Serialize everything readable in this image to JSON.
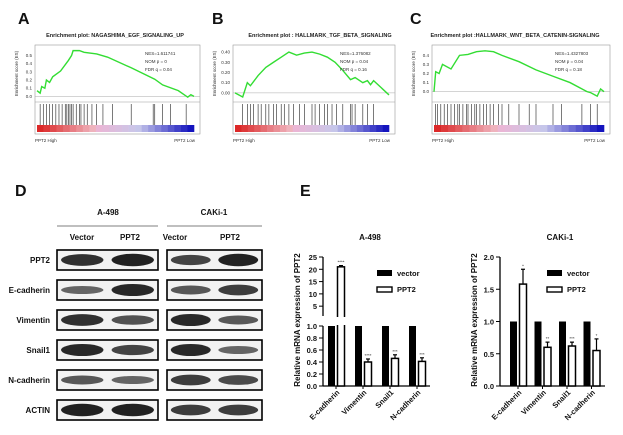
{
  "panels": {
    "a": "A",
    "b": "B",
    "c": "C",
    "d": "D",
    "e": "E"
  },
  "gsea_common": {
    "ylabel": "Enrichment score (ES)",
    "left_label": "PPT2 High",
    "right_label": "PPT2 Low",
    "line_color": "#33dd33"
  },
  "chart_data": [
    {
      "type": "line",
      "title": "Enrichment plot: NAGASHIMA_EGF_SIGNALING_UP",
      "ylim": [
        -0.02,
        0.58
      ],
      "yticks": [
        "0.0",
        "0.1",
        "0.2",
        "0.3",
        "0.4",
        "0.5"
      ],
      "ytick_values": [
        0,
        0.1,
        0.2,
        0.3,
        0.4,
        0.5
      ],
      "stats": [
        "NES=1.611741",
        "NOM p = 0",
        "FDR q = 0.04"
      ],
      "x": [
        0,
        0.02,
        0.03,
        0.05,
        0.06,
        0.08,
        0.1,
        0.15,
        0.2,
        0.22,
        0.23,
        0.27,
        0.3,
        0.38,
        0.45,
        0.6,
        0.75,
        0.8,
        0.9,
        0.96,
        0.98,
        1
      ],
      "y": [
        0.07,
        0.04,
        0.12,
        0.1,
        0.2,
        0.17,
        0.24,
        0.31,
        0.44,
        0.5,
        0.56,
        0.56,
        0.54,
        0.52,
        0.48,
        0.35,
        0.21,
        0.14,
        0.07,
        -0.01,
        0.02,
        0.0
      ],
      "hits": [
        0.02,
        0.04,
        0.06,
        0.08,
        0.1,
        0.12,
        0.14,
        0.16,
        0.18,
        0.19,
        0.2,
        0.21,
        0.22,
        0.23,
        0.25,
        0.27,
        0.28,
        0.3,
        0.32,
        0.35,
        0.38,
        0.42,
        0.48,
        0.6,
        0.74,
        0.75,
        0.8,
        0.85,
        0.95
      ]
    },
    {
      "type": "line",
      "title": "Enrichment plot : HALLMARK_TGF_BETA_SIGNALING",
      "ylim": [
        -0.05,
        0.43
      ],
      "yticks": [
        "0.00",
        "0.10",
        "0.20",
        "0.30",
        "0.40"
      ],
      "ytick_values": [
        0,
        0.1,
        0.2,
        0.3,
        0.4
      ],
      "stats": [
        "NES=1.376082",
        "NOM p = 0.04",
        "FDR q = 0.16"
      ],
      "x": [
        0,
        0.05,
        0.08,
        0.1,
        0.15,
        0.2,
        0.25,
        0.3,
        0.35,
        0.4,
        0.45,
        0.5,
        0.55,
        0.6,
        0.65,
        0.7,
        0.75,
        0.78,
        0.83,
        0.86,
        0.88,
        0.9,
        0.95,
        1
      ],
      "y": [
        0.0,
        -0.04,
        0.1,
        0.07,
        0.17,
        0.25,
        0.3,
        0.35,
        0.4,
        0.37,
        0.39,
        0.4,
        0.38,
        0.35,
        0.3,
        0.22,
        0.13,
        0.15,
        0.1,
        0.12,
        0.08,
        0.12,
        0.05,
        -0.02
      ],
      "hits": [
        0.05,
        0.08,
        0.1,
        0.12,
        0.15,
        0.17,
        0.2,
        0.22,
        0.25,
        0.27,
        0.3,
        0.32,
        0.35,
        0.38,
        0.42,
        0.45,
        0.5,
        0.52,
        0.55,
        0.58,
        0.6,
        0.63,
        0.66,
        0.7,
        0.75,
        0.76,
        0.78,
        0.83,
        0.86,
        0.9
      ]
    },
    {
      "type": "line",
      "title": "Enrichment plot :HALLMARK_WNT_BETA_CATENIN-SIGNALING",
      "ylim": [
        -0.07,
        0.47
      ],
      "yticks": [
        "0.0",
        "0.1",
        "0.2",
        "0.3",
        "0.4"
      ],
      "ytick_values": [
        0,
        0.1,
        0.2,
        0.3,
        0.4
      ],
      "stats": [
        "NES=1.4327803",
        "NOM p = 0.04",
        "FDR q = 0.18"
      ],
      "x": [
        0,
        0.01,
        0.03,
        0.05,
        0.1,
        0.15,
        0.2,
        0.25,
        0.3,
        0.35,
        0.4,
        0.5,
        0.6,
        0.7,
        0.8,
        0.9,
        0.92,
        0.95,
        0.96,
        0.98,
        1
      ],
      "y": [
        0,
        0.22,
        0.2,
        0.3,
        0.25,
        0.4,
        0.41,
        0.44,
        0.45,
        0.44,
        0.4,
        0.33,
        0.24,
        0.17,
        0.1,
        0.0,
        -0.01,
        -0.04,
        -0.05,
        0.03,
        0.0
      ],
      "hits": [
        0.01,
        0.02,
        0.04,
        0.06,
        0.08,
        0.1,
        0.12,
        0.14,
        0.15,
        0.17,
        0.19,
        0.2,
        0.22,
        0.24,
        0.25,
        0.27,
        0.29,
        0.31,
        0.33,
        0.35,
        0.38,
        0.4,
        0.44,
        0.5,
        0.56,
        0.6,
        0.7,
        0.75,
        0.87,
        0.92,
        0.96
      ]
    },
    {
      "type": "bar",
      "title": "A-498",
      "ylabel": "Relative mRNA expression of PPT2",
      "categories": [
        "E-cadherin",
        "Vimentin",
        "Snail1",
        "N-cadherin"
      ],
      "broken_axis": true,
      "yticks_lower": [
        "0.0",
        "0.2",
        "0.4",
        "0.6",
        "0.8",
        "1.0"
      ],
      "yticks_upper": [
        "5",
        "10",
        "15",
        "20",
        "25"
      ],
      "series": [
        {
          "name": "vector",
          "values": [
            1,
            1,
            1,
            1
          ],
          "errors": [
            0,
            0,
            0,
            0
          ],
          "color": "#000000"
        },
        {
          "name": "PPT2",
          "values": [
            21,
            0.4,
            0.46,
            0.41
          ],
          "errors": [
            0.5,
            0.05,
            0.06,
            0.06
          ],
          "color": "#ffffff"
        }
      ],
      "significance": [
        "****",
        "****",
        "***",
        "***"
      ]
    },
    {
      "type": "bar",
      "title": "CAKi-1",
      "ylabel": "Relative mRNA expression of PPT2",
      "categories": [
        "E-cadherin",
        "Vimentin",
        "Snail1",
        "N-cadherin"
      ],
      "ylim": [
        0,
        2.0
      ],
      "yticks": [
        "0.0",
        "0.5",
        "1.0",
        "1.5",
        "2.0"
      ],
      "series": [
        {
          "name": "vector",
          "values": [
            1,
            1,
            1,
            1
          ],
          "errors": [
            0,
            0,
            0,
            0
          ],
          "color": "#000000"
        },
        {
          "name": "PPT2",
          "values": [
            1.58,
            0.6,
            0.62,
            0.55
          ],
          "errors": [
            0.23,
            0.08,
            0.06,
            0.18
          ],
          "color": "#ffffff"
        }
      ],
      "significance": [
        "*",
        "**",
        "***",
        "*"
      ]
    }
  ],
  "western": {
    "cell_lines": [
      "A-498",
      "CAKi-1"
    ],
    "lanes": [
      "Vector",
      "PPT2",
      "Vector",
      "PPT2"
    ],
    "rows": [
      "PPT2",
      "E-cadherin",
      "Vimentin",
      "Snail1",
      "N-cadherin",
      "ACTIN"
    ],
    "intensity": [
      [
        0.85,
        0.95,
        0.7,
        0.95
      ],
      [
        0.45,
        0.9,
        0.55,
        0.75
      ],
      [
        0.85,
        0.6,
        0.9,
        0.55
      ],
      [
        0.9,
        0.7,
        0.9,
        0.45
      ],
      [
        0.55,
        0.45,
        0.75,
        0.65
      ],
      [
        0.95,
        0.95,
        0.75,
        0.75
      ]
    ]
  }
}
